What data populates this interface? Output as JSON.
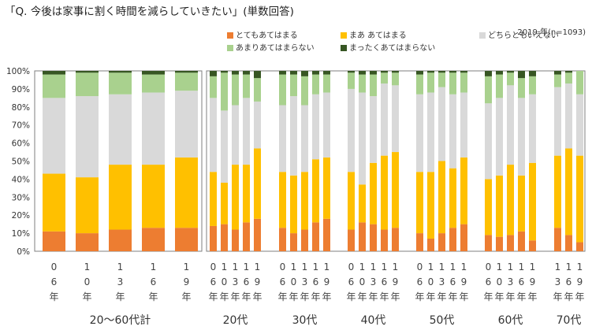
{
  "title": "「Q. 今後は家事に割く時間を減らしていきたい」(単数回答)",
  "note": "2019 年(n=1093)",
  "colors": {
    "s1": "#ed7d31",
    "s2": "#ffc000",
    "s3": "#d9d9d9",
    "s4": "#a9d18e",
    "s5": "#375623",
    "frame": "#7f7f7f"
  },
  "chart_data": {
    "type": "bar",
    "stacked": true,
    "title": "「Q. 今後は家事に割く時間を減らしていきたい」(単数回答)",
    "ylim": [
      0,
      100
    ],
    "yticks": [
      "0%",
      "10%",
      "20%",
      "30%",
      "40%",
      "50%",
      "60%",
      "70%",
      "80%",
      "90%",
      "100%"
    ],
    "grid": false,
    "legend_position": "top",
    "series": [
      {
        "name": "とてもあてはまる"
      },
      {
        "name": "まあ あてはまる"
      },
      {
        "name": "どちらともいえない"
      },
      {
        "name": "あまりあてはまらない"
      },
      {
        "name": "まったくあてはまらない"
      }
    ],
    "groups": [
      {
        "label": "20〜60代計",
        "bars": [
          {
            "label": "06年",
            "values": [
              11,
              32,
              42,
              13,
              2
            ]
          },
          {
            "label": "10年",
            "values": [
              10,
              31,
              45,
              13,
              1
            ]
          },
          {
            "label": "13年",
            "values": [
              12,
              36,
              39,
              12,
              1
            ]
          },
          {
            "label": "16年",
            "values": [
              13,
              35,
              40,
              10,
              2
            ]
          },
          {
            "label": "19年",
            "values": [
              13,
              39,
              37,
              10,
              1
            ]
          }
        ]
      },
      {
        "label": "20代",
        "bars": [
          {
            "label": "06年",
            "values": [
              14,
              30,
              41,
              12,
              3
            ]
          },
          {
            "label": "10年",
            "values": [
              15,
              23,
              40,
              21,
              1
            ]
          },
          {
            "label": "13年",
            "values": [
              12,
              36,
              33,
              17,
              2
            ]
          },
          {
            "label": "16年",
            "values": [
              16,
              32,
              37,
              13,
              2
            ]
          },
          {
            "label": "19年",
            "values": [
              18,
              39,
              26,
              13,
              4
            ]
          }
        ]
      },
      {
        "label": "30代",
        "bars": [
          {
            "label": "06年",
            "values": [
              13,
              31,
              37,
              17,
              2
            ]
          },
          {
            "label": "10年",
            "values": [
              10,
              32,
              44,
              12,
              2
            ]
          },
          {
            "label": "13年",
            "values": [
              12,
              32,
              37,
              16,
              3
            ]
          },
          {
            "label": "16年",
            "values": [
              16,
              35,
              36,
              11,
              2
            ]
          },
          {
            "label": "19年",
            "values": [
              18,
              34,
              36,
              10,
              2
            ]
          }
        ]
      },
      {
        "label": "40代",
        "bars": [
          {
            "label": "06年",
            "values": [
              12,
              32,
              46,
              9,
              1
            ]
          },
          {
            "label": "10年",
            "values": [
              16,
              21,
              51,
              10,
              2
            ]
          },
          {
            "label": "13年",
            "values": [
              15,
              34,
              37,
              12,
              2
            ]
          },
          {
            "label": "16年",
            "values": [
              12,
              41,
              40,
              6,
              1
            ]
          },
          {
            "label": "19年",
            "values": [
              13,
              42,
              37,
              7,
              1
            ]
          }
        ]
      },
      {
        "label": "50代",
        "bars": [
          {
            "label": "06年",
            "values": [
              10,
              34,
              43,
              11,
              2
            ]
          },
          {
            "label": "10年",
            "values": [
              7,
              37,
              44,
              11,
              1
            ]
          },
          {
            "label": "13年",
            "values": [
              10,
              40,
              41,
              8,
              1
            ]
          },
          {
            "label": "16年",
            "values": [
              13,
              33,
              41,
              12,
              1
            ]
          },
          {
            "label": "19年",
            "values": [
              15,
              37,
              36,
              11,
              1
            ]
          }
        ]
      },
      {
        "label": "60代",
        "bars": [
          {
            "label": "06年",
            "values": [
              9,
              31,
              42,
              15,
              3
            ]
          },
          {
            "label": "10年",
            "values": [
              8,
              34,
              43,
              13,
              2
            ]
          },
          {
            "label": "13年",
            "values": [
              9,
              39,
              44,
              7,
              1
            ]
          },
          {
            "label": "16年",
            "values": [
              11,
              31,
              43,
              11,
              4
            ]
          },
          {
            "label": "19年",
            "values": [
              6,
              43,
              38,
              10,
              3
            ]
          }
        ]
      },
      {
        "label": "70代",
        "bars": [
          {
            "label": "13年",
            "values": [
              13,
              40,
              38,
              7,
              2
            ]
          },
          {
            "label": "16年",
            "values": [
              9,
              48,
              36,
              6,
              1
            ]
          },
          {
            "label": "19年",
            "values": [
              5,
              48,
              34,
              13,
              0
            ]
          }
        ]
      }
    ]
  }
}
